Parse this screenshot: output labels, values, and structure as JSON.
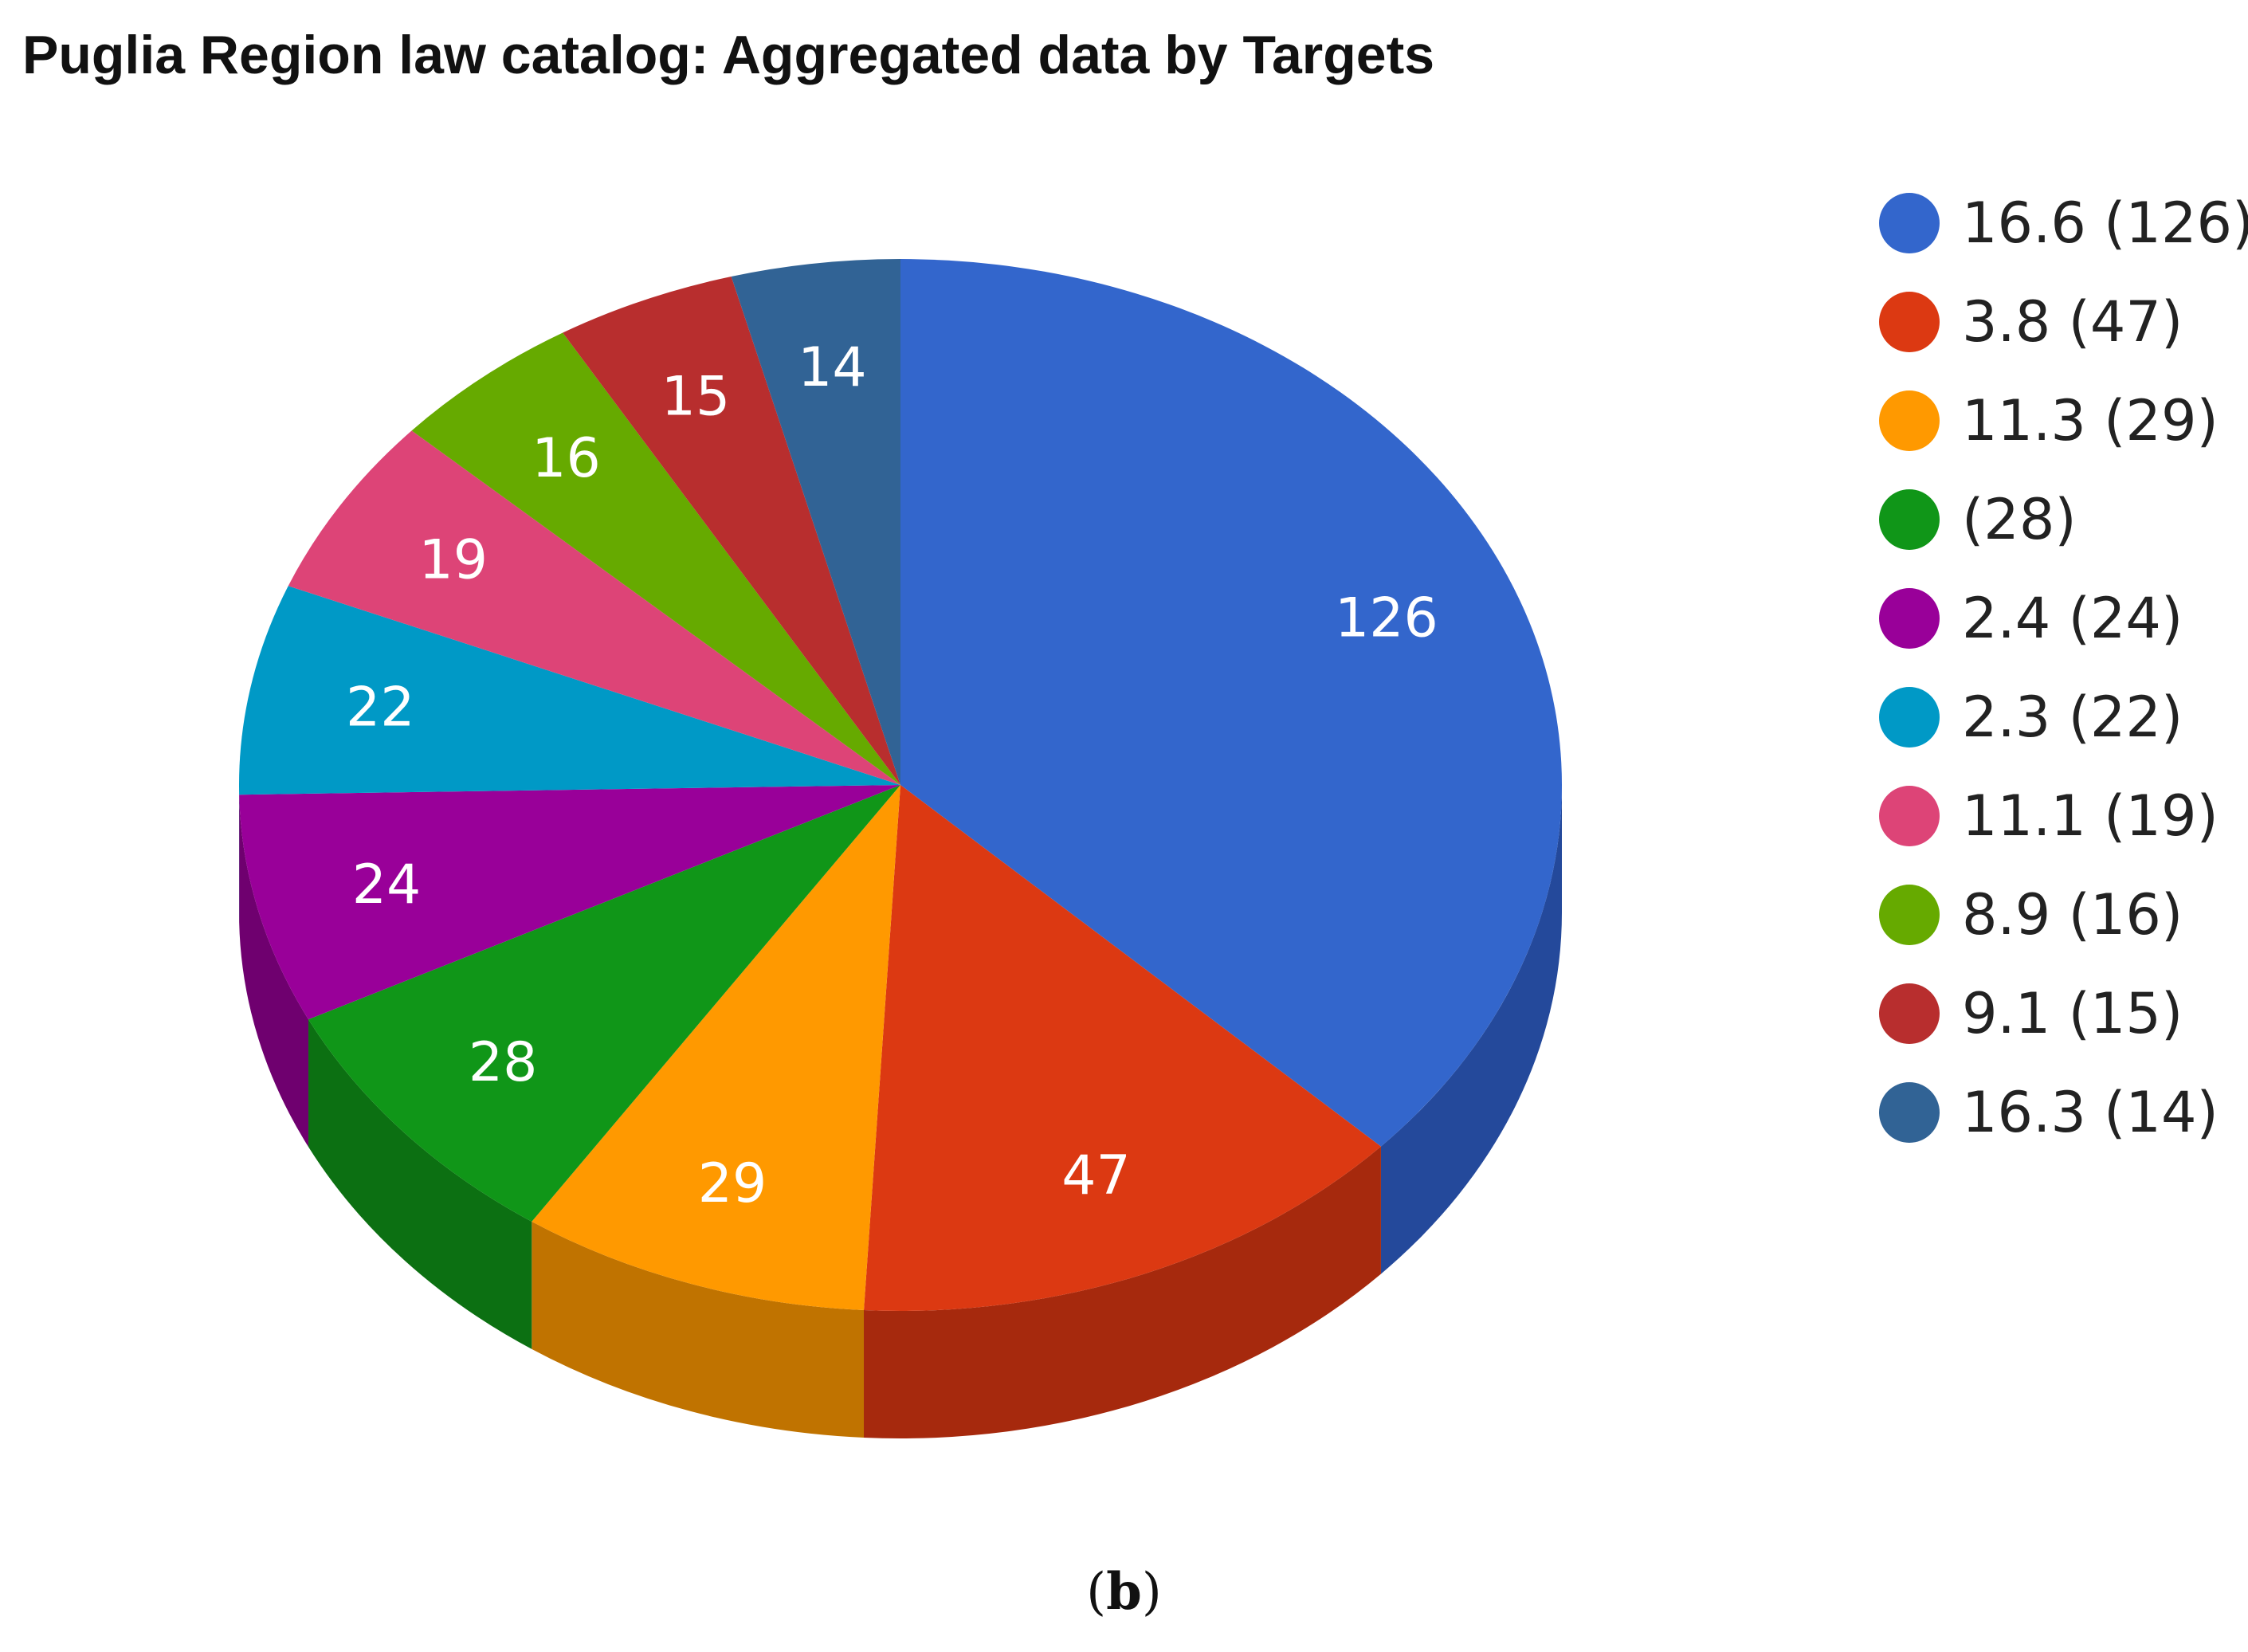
{
  "chart_data": {
    "type": "pie",
    "title": "Puglia Region law catalog:  Aggregated data by Targets",
    "legend_position": "right",
    "slices": [
      {
        "legend": "16.6 (126)",
        "label": "126",
        "value": 126,
        "color": "#3366cc",
        "side_color": "#24499b"
      },
      {
        "legend": "3.8 (47)",
        "label": "47",
        "value": 47,
        "color": "#dc3912",
        "side_color": "#a6290d"
      },
      {
        "legend": "11.3 (29)",
        "label": "29",
        "value": 29,
        "color": "#ff9900",
        "side_color": "#c07300"
      },
      {
        "legend": "(28)",
        "label": "28",
        "value": 28,
        "color": "#109618",
        "side_color": "#0c7012"
      },
      {
        "legend": "2.4 (24)",
        "label": "24",
        "value": 24,
        "color": "#990099",
        "side_color": "#6f006f"
      },
      {
        "legend": "2.3 (22)",
        "label": "22",
        "value": 22,
        "color": "#0099c6",
        "side_color": "#007395"
      },
      {
        "legend": "11.1 (19)",
        "label": "19",
        "value": 19,
        "color": "#dd4477",
        "side_color": "#a63359"
      },
      {
        "legend": "8.9 (16)",
        "label": "16",
        "value": 16,
        "color": "#66aa00",
        "side_color": "#4d8000"
      },
      {
        "legend": "9.1 (15)",
        "label": "15",
        "value": 15,
        "color": "#b82e2e",
        "side_color": "#8a2222"
      },
      {
        "legend": "16.3 (14)",
        "label": "14",
        "value": 14,
        "color": "#316395",
        "side_color": "#244a70"
      }
    ]
  },
  "caption": {
    "open": "(",
    "letter": "b",
    "close": ")"
  }
}
